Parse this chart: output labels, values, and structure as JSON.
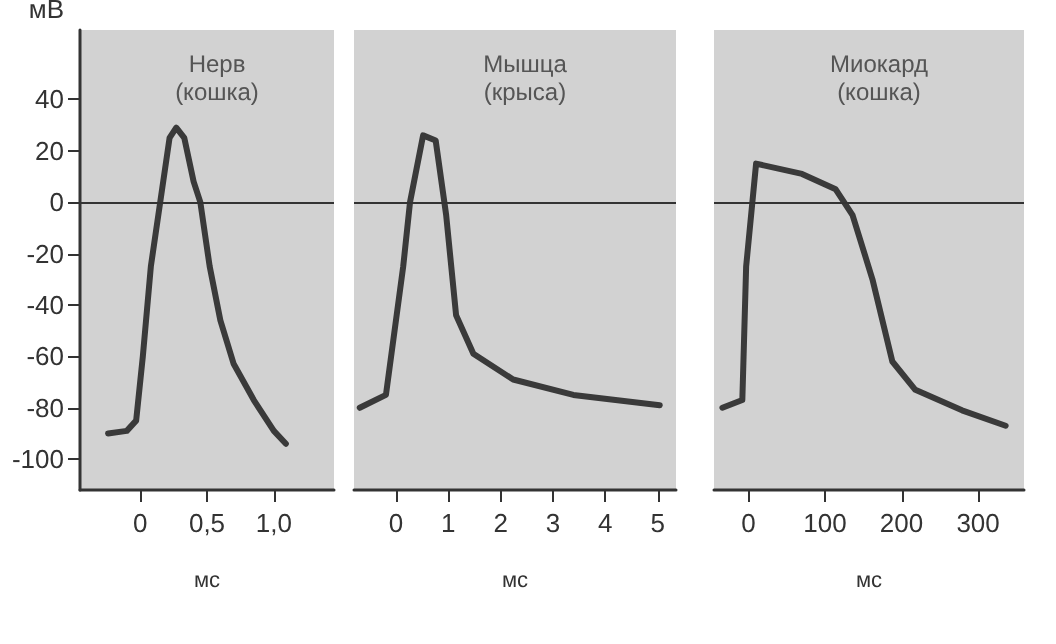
{
  "chart_data": [
    {
      "type": "line",
      "title": "Нерв (кошка)",
      "xlabel": "мс",
      "ylabel": "мВ",
      "color": "#3a3a3a",
      "x": [
        -0.24,
        -0.1,
        -0.03,
        0.02,
        0.08,
        0.15,
        0.22,
        0.27,
        0.33,
        0.4,
        0.45,
        0.52,
        0.6,
        0.7,
        0.85,
        1.0,
        1.09
      ],
      "values": [
        -90,
        -89,
        -85,
        -60,
        -25,
        0,
        25,
        29,
        25,
        8,
        0,
        -25,
        -46,
        -63,
        -77,
        -89,
        -94
      ],
      "xlim": [
        -0.45,
        1.45
      ],
      "xticks": [
        0,
        {
          "value": 0.5,
          "label": "0,5"
        },
        {
          "value": 1.0,
          "label": "1,0"
        }
      ],
      "ylim": [
        -112,
        67
      ],
      "yticks": [
        -100,
        -80,
        -60,
        -40,
        -20,
        0,
        20,
        40
      ],
      "ref_lines": [
        {
          "axis": "y",
          "value": 0
        }
      ],
      "grid": false
    },
    {
      "type": "line",
      "title": "Мышца (крыса)",
      "xlabel": "мс",
      "color": "#3a3a3a",
      "x": [
        -0.69,
        -0.19,
        0.14,
        0.27,
        0.52,
        0.76,
        0.96,
        1.15,
        1.48,
        2.24,
        3.39,
        5.04
      ],
      "values": [
        -80,
        -75,
        -25,
        0,
        26,
        24,
        -5,
        -44,
        -59,
        -69,
        -75,
        -79
      ],
      "xlim": [
        -0.8,
        5.35
      ],
      "xticks": [
        0,
        1,
        2,
        3,
        4,
        5
      ],
      "ylim": [
        -112,
        67
      ],
      "yticks": [
        -100,
        -80,
        -60,
        -40,
        -20,
        0,
        20,
        40
      ],
      "tick_labels": "x",
      "ref_lines": [
        {
          "axis": "y",
          "value": 0
        }
      ],
      "grid": false
    },
    {
      "type": "line",
      "title": "Миокард (кошка)",
      "xlabel": "мс",
      "color": "#3a3a3a",
      "x": [
        -34,
        -8,
        -3,
        10,
        70,
        114,
        136,
        162,
        188,
        218,
        279,
        336
      ],
      "values": [
        -80,
        -77,
        -25,
        15,
        11,
        5,
        -5,
        -30,
        -62,
        -73,
        -81,
        -87
      ],
      "xlim": [
        -45,
        360
      ],
      "xticks": [
        0,
        100,
        200,
        300
      ],
      "ylim": [
        -112,
        67
      ],
      "yticks": [
        -100,
        -80,
        -60,
        -40,
        -20,
        0,
        20,
        40
      ],
      "tick_labels": "x",
      "ref_lines": [
        {
          "axis": "y",
          "value": 0
        }
      ],
      "grid": false
    }
  ]
}
